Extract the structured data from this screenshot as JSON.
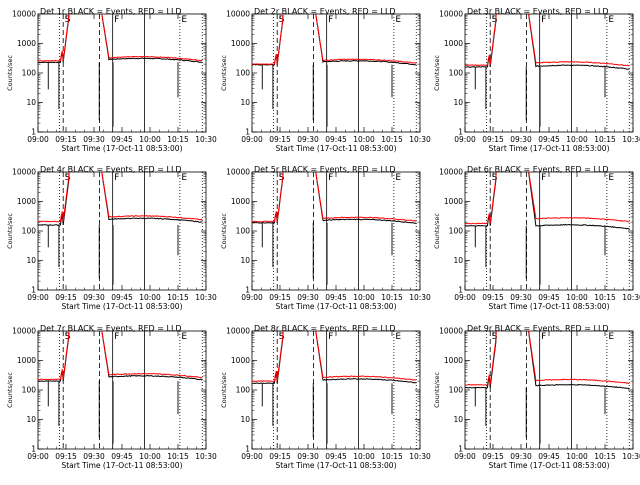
{
  "page": {
    "background": "#ffffff"
  },
  "chart_data": {
    "type": "line",
    "colors": {
      "black_series": "#000000",
      "red_series": "#ff0000",
      "axes": "#000000"
    },
    "x_tick_labels": [
      "09:00",
      "09:15",
      "09:30",
      "09:45",
      "10:00",
      "10:15",
      "10:30"
    ],
    "x_range_minutes": [
      0,
      90
    ],
    "y_tick_labels": [
      "1",
      "10",
      "100",
      "1000",
      "10000"
    ],
    "ylim": [
      1,
      10000
    ],
    "y_scale": "log",
    "ylabel": "Counts/sec",
    "xlabel": "Start Time (17-Oct-11 08:53:00)",
    "event_markers": [
      {
        "minute": 11.5,
        "style": "dotted",
        "label": ""
      },
      {
        "minute": 13.5,
        "style": "dashed",
        "label": "S"
      },
      {
        "minute": 33.0,
        "style": "dashed",
        "label": ""
      },
      {
        "minute": 40.0,
        "style": "solid",
        "label": "F"
      },
      {
        "minute": 57.0,
        "style": "solid",
        "label": ""
      },
      {
        "minute": 76.0,
        "style": "dotted",
        "label": "E"
      },
      {
        "minute": 88.0,
        "style": "dotted",
        "label": ""
      }
    ],
    "panels": [
      {
        "title": "Det 1r BLACK = Events, RED = LLD",
        "baseline_events": 230,
        "baseline_lld": 260,
        "plateau_events": 290,
        "plateau_lld": 330
      },
      {
        "title": "Det 2r BLACK = Events, RED = LLD",
        "baseline_events": 190,
        "baseline_lld": 200,
        "plateau_events": 240,
        "plateau_lld": 270
      },
      {
        "title": "Det 3r BLACK = Events, RED = LLD",
        "baseline_events": 160,
        "baseline_lld": 185,
        "plateau_events": 170,
        "plateau_lld": 220
      },
      {
        "title": "Det 4r BLACK = Events, RED = LLD",
        "baseline_events": 160,
        "baseline_lld": 210,
        "plateau_events": 250,
        "plateau_lld": 300
      },
      {
        "title": "Det 5r BLACK = Events, RED = LLD",
        "baseline_events": 190,
        "baseline_lld": 210,
        "plateau_events": 230,
        "plateau_lld": 270
      },
      {
        "title": "Det 6r BLACK = Events, RED = LLD",
        "baseline_events": 150,
        "baseline_lld": 180,
        "plateau_events": 150,
        "plateau_lld": 260
      },
      {
        "title": "Det 7r BLACK = Events, RED = LLD",
        "baseline_events": 200,
        "baseline_lld": 230,
        "plateau_events": 280,
        "plateau_lld": 330
      },
      {
        "title": "Det 8r BLACK = Events, RED = LLD",
        "baseline_events": 170,
        "baseline_lld": 200,
        "plateau_events": 220,
        "plateau_lld": 270
      },
      {
        "title": "Det 9r BLACK = Events, RED = LLD",
        "baseline_events": 120,
        "baseline_lld": 150,
        "plateau_events": 140,
        "plateau_lld": 210
      }
    ]
  }
}
